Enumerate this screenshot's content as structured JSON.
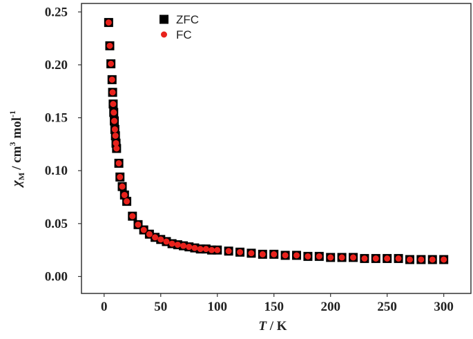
{
  "chart_data": {
    "type": "scatter",
    "x_label": [
      "T",
      "/ K"
    ],
    "y_label": [
      "χ",
      "M",
      "/ cm",
      "3",
      "mol",
      "-1"
    ],
    "xlim": [
      -20,
      324
    ],
    "ylim": [
      -0.016,
      0.258
    ],
    "xticks": [
      0,
      50,
      100,
      150,
      200,
      250,
      300
    ],
    "yticks": [
      {
        "value": 0,
        "label": "0.00"
      },
      0.05,
      {
        "value": 0.1,
        "label": "0.10"
      },
      0.15,
      {
        "value": 0.2,
        "label": "0.20"
      },
      0.25
    ],
    "x": [
      4,
      5,
      6,
      7,
      7.5,
      8,
      8.5,
      9,
      9.5,
      10,
      10.5,
      11,
      13,
      14,
      16,
      18,
      20,
      25,
      30,
      35,
      40,
      45,
      50,
      55,
      60,
      65,
      70,
      75,
      80,
      85,
      90,
      95,
      100,
      110,
      120,
      130,
      140,
      150,
      160,
      170,
      180,
      190,
      200,
      210,
      220,
      230,
      240,
      250,
      260,
      270,
      280,
      290,
      300
    ],
    "series": [
      {
        "name": "ZFC",
        "color": "#000000",
        "marker": "square",
        "values": [
          0.24,
          0.218,
          0.201,
          0.186,
          0.174,
          0.163,
          0.155,
          0.147,
          0.139,
          0.133,
          0.126,
          0.121,
          0.107,
          0.094,
          0.085,
          0.077,
          0.071,
          0.057,
          0.049,
          0.044,
          0.04,
          0.037,
          0.035,
          0.033,
          0.031,
          0.03,
          0.029,
          0.028,
          0.027,
          0.026,
          0.026,
          0.025,
          0.025,
          0.024,
          0.023,
          0.022,
          0.021,
          0.021,
          0.02,
          0.02,
          0.019,
          0.019,
          0.018,
          0.018,
          0.018,
          0.017,
          0.017,
          0.017,
          0.017,
          0.016,
          0.016,
          0.016,
          0.016
        ]
      },
      {
        "name": "FC",
        "color": "#e8221c",
        "marker": "circle",
        "values": [
          0.24,
          0.218,
          0.201,
          0.186,
          0.174,
          0.163,
          0.155,
          0.147,
          0.139,
          0.133,
          0.126,
          0.121,
          0.107,
          0.094,
          0.085,
          0.077,
          0.071,
          0.057,
          0.049,
          0.044,
          0.04,
          0.037,
          0.035,
          0.033,
          0.031,
          0.03,
          0.029,
          0.028,
          0.027,
          0.026,
          0.026,
          0.025,
          0.025,
          0.024,
          0.023,
          0.022,
          0.021,
          0.021,
          0.02,
          0.02,
          0.019,
          0.019,
          0.018,
          0.018,
          0.018,
          0.017,
          0.017,
          0.017,
          0.017,
          0.016,
          0.016,
          0.016,
          0.016
        ]
      }
    ]
  }
}
